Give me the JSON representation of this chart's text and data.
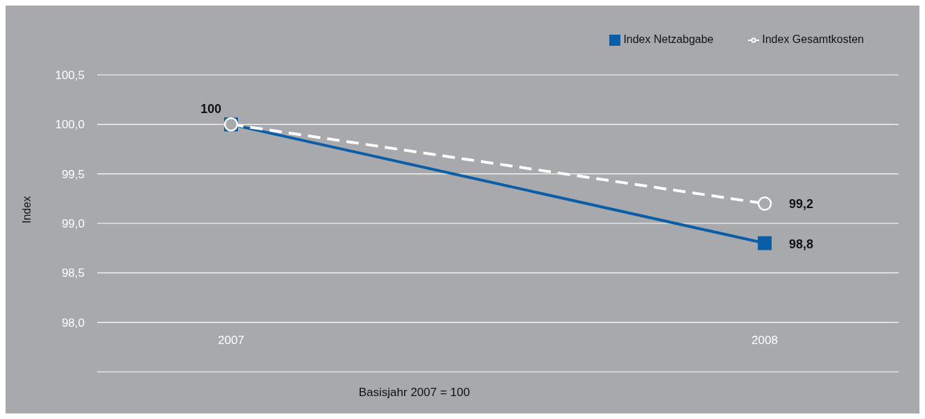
{
  "chart_data": {
    "type": "line",
    "ylabel": "Index",
    "categories": [
      "2007",
      "2008"
    ],
    "series": [
      {
        "name": "Index Netzabgabe",
        "color": "#0a5ea8",
        "values": [
          100,
          98.8
        ],
        "marker": "square",
        "line_style": "solid",
        "value_labels": [
          "100",
          "98,8"
        ]
      },
      {
        "name": "Index Gesamtkosten",
        "color": "#ffffff",
        "values": [
          100,
          99.2
        ],
        "marker": "circle",
        "line_style": "dashed",
        "value_labels": [
          null,
          "99,2"
        ]
      }
    ],
    "ylim": [
      97.5,
      100.5
    ],
    "yticks": [
      {
        "value": 97.5,
        "label": null
      },
      {
        "value": 98,
        "label": "98,0"
      },
      {
        "value": 98.5,
        "label": "98,5"
      },
      {
        "value": 99,
        "label": "99,0"
      },
      {
        "value": 99.5,
        "label": "99,5"
      },
      {
        "value": 100,
        "label": "100,0"
      },
      {
        "value": 100.5,
        "label": "100,5"
      }
    ],
    "grid": "y",
    "legend": "top right",
    "annotations": [
      "Basisjahr 2007 = 100"
    ]
  }
}
